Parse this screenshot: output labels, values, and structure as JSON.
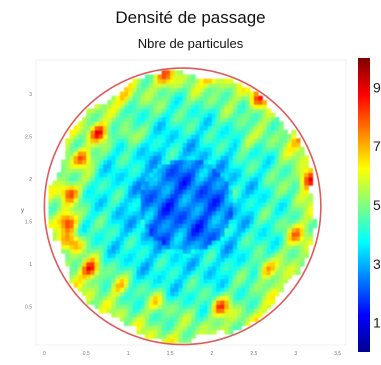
{
  "chart_data": {
    "type": "heatmap",
    "title": "Densité de passage",
    "subtitle": "Nbre de particules",
    "xlabel": "",
    "ylabel": "y",
    "xlim": [
      -0.1,
      3.6
    ],
    "ylim": [
      0.05,
      3.4
    ],
    "x_ticks": [
      "0",
      "0.5",
      "1",
      "1.5",
      "2",
      "2.5",
      "3",
      "3.5"
    ],
    "y_ticks": [
      "0.5",
      "1",
      "1.5",
      "2",
      "2.5",
      "3"
    ],
    "colorbar": {
      "min": 0,
      "max": 10,
      "tick_labels": [
        "1",
        "3",
        "5",
        "7",
        "9"
      ],
      "colormap": "jet"
    },
    "circle": {
      "cx": 1.65,
      "cy": 1.68,
      "r": 1.65,
      "color": "#e05a5a"
    },
    "hotspots": [
      {
        "x": 0.65,
        "y": 2.55,
        "value": 9.2
      },
      {
        "x": 0.45,
        "y": 2.25,
        "value": 8.8
      },
      {
        "x": 0.3,
        "y": 1.85,
        "value": 8.6
      },
      {
        "x": 0.28,
        "y": 1.5,
        "value": 8.9
      },
      {
        "x": 0.35,
        "y": 1.25,
        "value": 8.0
      },
      {
        "x": 0.55,
        "y": 0.95,
        "value": 9.3
      },
      {
        "x": 0.9,
        "y": 0.75,
        "value": 7.5
      },
      {
        "x": 1.35,
        "y": 0.55,
        "value": 7.2
      },
      {
        "x": 2.1,
        "y": 0.5,
        "value": 8.6
      },
      {
        "x": 2.65,
        "y": 0.95,
        "value": 8.2
      },
      {
        "x": 3.0,
        "y": 1.35,
        "value": 7.4
      },
      {
        "x": 3.15,
        "y": 2.0,
        "value": 8.7
      },
      {
        "x": 3.05,
        "y": 2.45,
        "value": 7.0
      },
      {
        "x": 2.55,
        "y": 2.95,
        "value": 8.0
      },
      {
        "x": 2.0,
        "y": 3.2,
        "value": 7.6
      },
      {
        "x": 1.45,
        "y": 3.2,
        "value": 7.3
      },
      {
        "x": 0.95,
        "y": 2.95,
        "value": 6.8
      },
      {
        "x": 1.0,
        "y": 2.5,
        "value": 7.0
      },
      {
        "x": 2.4,
        "y": 2.45,
        "value": 6.8
      },
      {
        "x": 1.65,
        "y": 1.15,
        "value": 6.5
      }
    ]
  }
}
